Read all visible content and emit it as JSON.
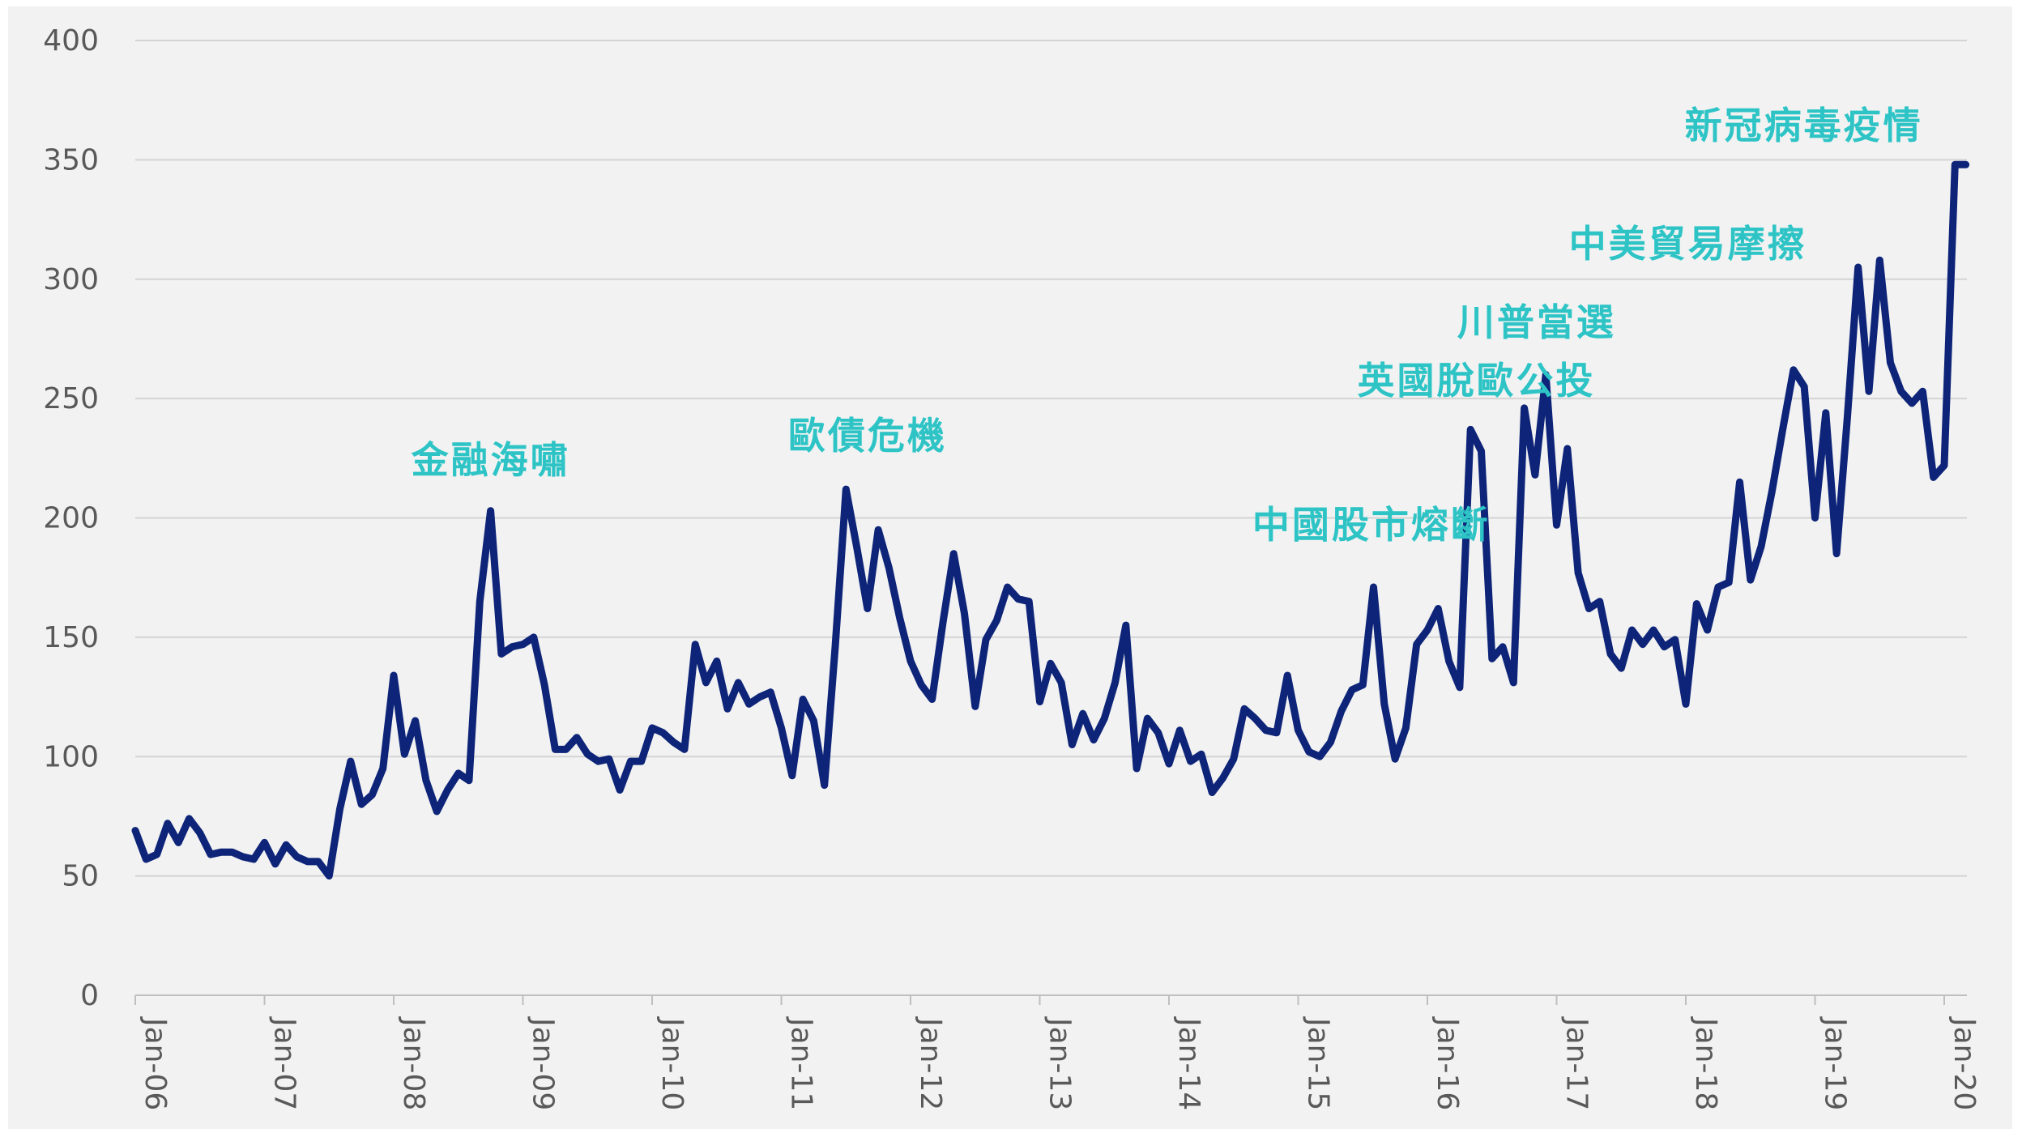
{
  "chart_data": {
    "type": "line",
    "title": "",
    "xlabel": "",
    "ylabel": "",
    "ylim": [
      0,
      400
    ],
    "yticks": [
      0,
      50,
      100,
      150,
      200,
      250,
      300,
      350,
      400
    ],
    "grid": true,
    "line_color": "#0d2478",
    "annotation_color": "#2ec4c6",
    "x_tick_labels": [
      "Jan-06",
      "Jan-07",
      "Jan-08",
      "Jan-09",
      "Jan-10",
      "Jan-11",
      "Jan-12",
      "Jan-13",
      "Jan-14",
      "Jan-15",
      "Jan-16",
      "Jan-17",
      "Jan-18",
      "Jan-19",
      "Jan-20"
    ],
    "x_start": "2006-01",
    "values": [
      69,
      57,
      59,
      72,
      64,
      74,
      68,
      59,
      60,
      60,
      58,
      57,
      64,
      55,
      63,
      58,
      56,
      56,
      50,
      78,
      98,
      80,
      84,
      95,
      134,
      101,
      115,
      90,
      77,
      86,
      93,
      90,
      165,
      203,
      143,
      146,
      147,
      150,
      130,
      103,
      103,
      108,
      101,
      98,
      99,
      86,
      98,
      98,
      112,
      110,
      106,
      103,
      147,
      131,
      140,
      120,
      131,
      122,
      125,
      127,
      112,
      92,
      124,
      115,
      88,
      146,
      212,
      188,
      162,
      195,
      179,
      158,
      140,
      130,
      124,
      156,
      185,
      160,
      121,
      149,
      157,
      171,
      166,
      165,
      123,
      139,
      131,
      105,
      118,
      107,
      116,
      131,
      155,
      95,
      116,
      110,
      97,
      111,
      98,
      101,
      85,
      91,
      99,
      120,
      116,
      111,
      110,
      134,
      111,
      102,
      100,
      106,
      119,
      128,
      130,
      171,
      122,
      99,
      112,
      147,
      153,
      162,
      140,
      129,
      237,
      228,
      141,
      146,
      131,
      246,
      218,
      260,
      197,
      229,
      177,
      162,
      165,
      143,
      137,
      153,
      147,
      153,
      146,
      149,
      122,
      164,
      153,
      171,
      173,
      215,
      174,
      188,
      211,
      237,
      262,
      255,
      200,
      244,
      185,
      242,
      305,
      253,
      308,
      265,
      253,
      248,
      253,
      217,
      222,
      348,
      348
    ]
  },
  "annotations": [
    {
      "label": "金融海嘯",
      "date": "2008-10"
    },
    {
      "label": "歐債危機",
      "date": "2011-09"
    },
    {
      "label": "中國股市熔斷",
      "date": "2015-09"
    },
    {
      "label": "英國脫歐公投",
      "date": "2016-06"
    },
    {
      "label": "川普當選",
      "date": "2016-11"
    },
    {
      "label": "中美貿易摩擦",
      "date": "2019-05"
    },
    {
      "label": "新冠病毒疫情",
      "date": "2020-03"
    }
  ]
}
